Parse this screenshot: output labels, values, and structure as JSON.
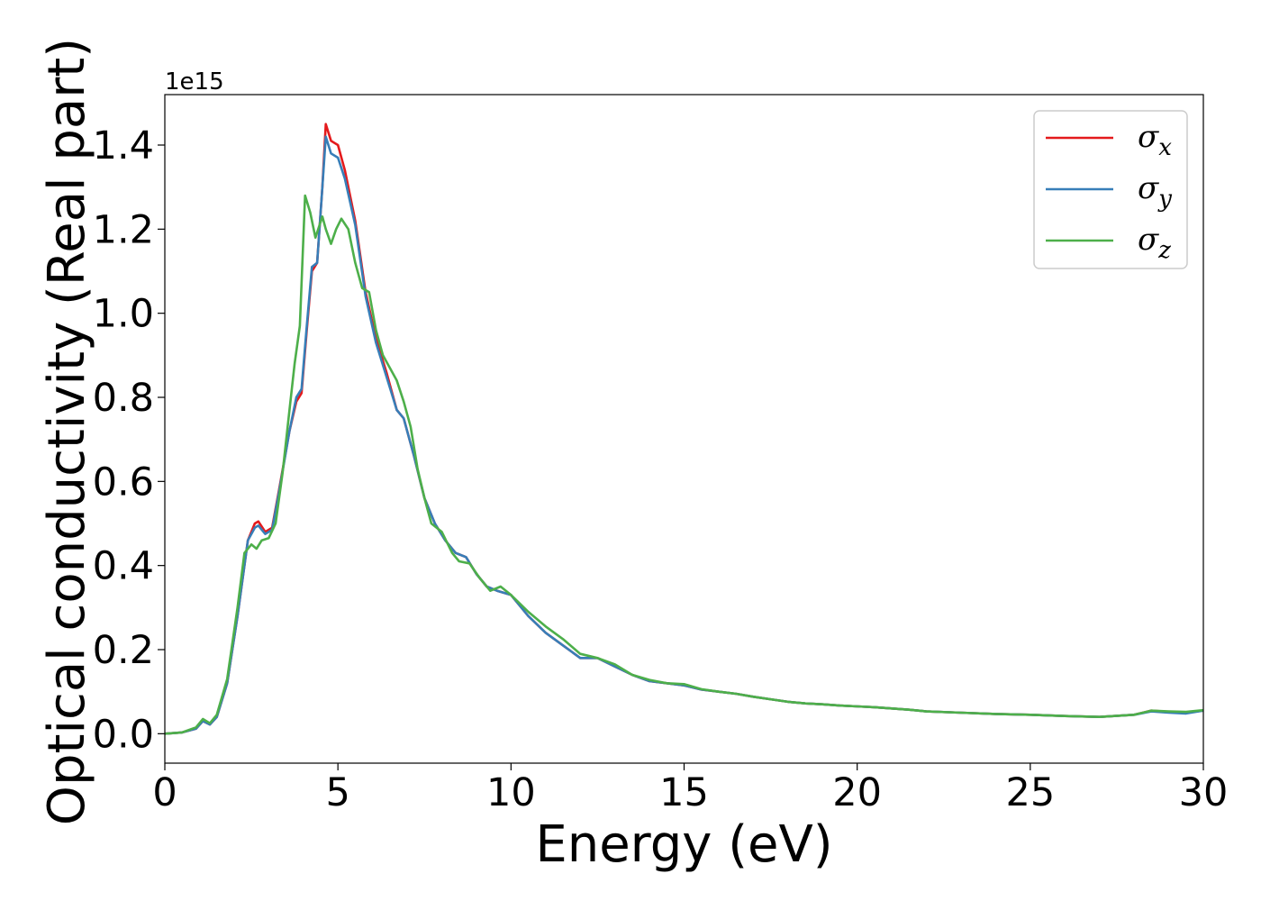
{
  "chart_data": {
    "type": "line",
    "xlabel": "Energy (eV)",
    "ylabel": "Optical conductivity (Real part)",
    "y_offset_label": "1e15",
    "xlim": [
      0,
      30
    ],
    "ylim": [
      -0.07,
      1.52
    ],
    "x_ticks": [
      0,
      5,
      10,
      15,
      20,
      25,
      30
    ],
    "x_tick_labels": [
      "0",
      "5",
      "10",
      "15",
      "20",
      "25",
      "30"
    ],
    "y_ticks": [
      0.0,
      0.2,
      0.4,
      0.6,
      0.8,
      1.0,
      1.2,
      1.4
    ],
    "y_tick_labels": [
      "0.0",
      "0.2",
      "0.4",
      "0.6",
      "0.8",
      "1.0",
      "1.2",
      "1.4"
    ],
    "grid": false,
    "legend_position": "top-right",
    "series": [
      {
        "name": "σx",
        "name_base": "σ",
        "name_sub": "x",
        "color": "#e41a1c",
        "points": [
          [
            0,
            0
          ],
          [
            0.5,
            0.003
          ],
          [
            0.9,
            0.012
          ],
          [
            1.1,
            0.03
          ],
          [
            1.3,
            0.022
          ],
          [
            1.5,
            0.04
          ],
          [
            1.8,
            0.12
          ],
          [
            2.1,
            0.28
          ],
          [
            2.4,
            0.46
          ],
          [
            2.6,
            0.5
          ],
          [
            2.7,
            0.505
          ],
          [
            2.9,
            0.48
          ],
          [
            3.1,
            0.49
          ],
          [
            3.3,
            0.58
          ],
          [
            3.6,
            0.72
          ],
          [
            3.8,
            0.79
          ],
          [
            3.95,
            0.81
          ],
          [
            4.1,
            0.96
          ],
          [
            4.25,
            1.1
          ],
          [
            4.4,
            1.12
          ],
          [
            4.55,
            1.3
          ],
          [
            4.65,
            1.45
          ],
          [
            4.8,
            1.41
          ],
          [
            5.0,
            1.4
          ],
          [
            5.2,
            1.34
          ],
          [
            5.5,
            1.22
          ],
          [
            5.8,
            1.05
          ],
          [
            6.1,
            0.94
          ],
          [
            6.4,
            0.86
          ],
          [
            6.7,
            0.77
          ],
          [
            6.9,
            0.75
          ],
          [
            7.2,
            0.66
          ],
          [
            7.5,
            0.56
          ],
          [
            7.8,
            0.5
          ],
          [
            8.1,
            0.46
          ],
          [
            8.4,
            0.43
          ],
          [
            8.7,
            0.42
          ],
          [
            9.0,
            0.38
          ],
          [
            9.3,
            0.35
          ],
          [
            9.6,
            0.34
          ],
          [
            10.0,
            0.33
          ],
          [
            10.5,
            0.28
          ],
          [
            11.0,
            0.24
          ],
          [
            11.5,
            0.21
          ],
          [
            12.0,
            0.18
          ],
          [
            12.5,
            0.18
          ],
          [
            13.0,
            0.16
          ],
          [
            13.5,
            0.14
          ],
          [
            14.0,
            0.125
          ],
          [
            14.5,
            0.12
          ],
          [
            15.0,
            0.115
          ],
          [
            15.5,
            0.105
          ],
          [
            16.0,
            0.1
          ],
          [
            16.5,
            0.095
          ],
          [
            17.0,
            0.088
          ],
          [
            17.5,
            0.082
          ],
          [
            18.0,
            0.076
          ],
          [
            18.5,
            0.072
          ],
          [
            19.0,
            0.07
          ],
          [
            19.5,
            0.067
          ],
          [
            20.0,
            0.065
          ],
          [
            20.5,
            0.063
          ],
          [
            21.0,
            0.06
          ],
          [
            21.5,
            0.057
          ],
          [
            22.0,
            0.053
          ],
          [
            23.0,
            0.05
          ],
          [
            24.0,
            0.047
          ],
          [
            25.0,
            0.045
          ],
          [
            26.0,
            0.042
          ],
          [
            27.0,
            0.04
          ],
          [
            28.0,
            0.045
          ],
          [
            28.5,
            0.055
          ],
          [
            29.0,
            0.052
          ],
          [
            29.5,
            0.05
          ],
          [
            30.0,
            0.055
          ]
        ]
      },
      {
        "name": "σy",
        "name_base": "σ",
        "name_sub": "y",
        "color": "#377eb8",
        "points": [
          [
            0,
            0
          ],
          [
            0.5,
            0.003
          ],
          [
            0.9,
            0.012
          ],
          [
            1.1,
            0.03
          ],
          [
            1.3,
            0.022
          ],
          [
            1.5,
            0.04
          ],
          [
            1.8,
            0.12
          ],
          [
            2.1,
            0.28
          ],
          [
            2.4,
            0.46
          ],
          [
            2.6,
            0.49
          ],
          [
            2.7,
            0.495
          ],
          [
            2.9,
            0.475
          ],
          [
            3.1,
            0.485
          ],
          [
            3.3,
            0.575
          ],
          [
            3.6,
            0.72
          ],
          [
            3.8,
            0.8
          ],
          [
            3.95,
            0.82
          ],
          [
            4.1,
            0.97
          ],
          [
            4.25,
            1.11
          ],
          [
            4.4,
            1.12
          ],
          [
            4.55,
            1.3
          ],
          [
            4.65,
            1.42
          ],
          [
            4.8,
            1.38
          ],
          [
            5.0,
            1.37
          ],
          [
            5.2,
            1.32
          ],
          [
            5.5,
            1.21
          ],
          [
            5.8,
            1.04
          ],
          [
            6.1,
            0.93
          ],
          [
            6.4,
            0.85
          ],
          [
            6.7,
            0.77
          ],
          [
            6.9,
            0.75
          ],
          [
            7.2,
            0.66
          ],
          [
            7.5,
            0.56
          ],
          [
            7.8,
            0.5
          ],
          [
            8.1,
            0.46
          ],
          [
            8.4,
            0.43
          ],
          [
            8.7,
            0.42
          ],
          [
            9.0,
            0.38
          ],
          [
            9.3,
            0.35
          ],
          [
            9.6,
            0.34
          ],
          [
            10.0,
            0.33
          ],
          [
            10.5,
            0.28
          ],
          [
            11.0,
            0.24
          ],
          [
            11.5,
            0.21
          ],
          [
            12.0,
            0.18
          ],
          [
            12.5,
            0.18
          ],
          [
            13.0,
            0.16
          ],
          [
            13.5,
            0.14
          ],
          [
            14.0,
            0.125
          ],
          [
            14.5,
            0.12
          ],
          [
            15.0,
            0.115
          ],
          [
            15.5,
            0.105
          ],
          [
            16.0,
            0.1
          ],
          [
            16.5,
            0.095
          ],
          [
            17.0,
            0.088
          ],
          [
            17.5,
            0.082
          ],
          [
            18.0,
            0.076
          ],
          [
            18.5,
            0.072
          ],
          [
            19.0,
            0.07
          ],
          [
            19.5,
            0.067
          ],
          [
            20.0,
            0.065
          ],
          [
            20.5,
            0.063
          ],
          [
            21.0,
            0.06
          ],
          [
            21.5,
            0.057
          ],
          [
            22.0,
            0.053
          ],
          [
            23.0,
            0.05
          ],
          [
            24.0,
            0.047
          ],
          [
            25.0,
            0.045
          ],
          [
            26.0,
            0.042
          ],
          [
            27.0,
            0.04
          ],
          [
            28.0,
            0.045
          ],
          [
            28.5,
            0.053
          ],
          [
            29.0,
            0.05
          ],
          [
            29.5,
            0.048
          ],
          [
            30.0,
            0.055
          ]
        ]
      },
      {
        "name": "σz",
        "name_base": "σ",
        "name_sub": "z",
        "color": "#4daf4a",
        "points": [
          [
            0,
            0
          ],
          [
            0.5,
            0.003
          ],
          [
            0.9,
            0.015
          ],
          [
            1.1,
            0.035
          ],
          [
            1.3,
            0.025
          ],
          [
            1.5,
            0.045
          ],
          [
            1.8,
            0.13
          ],
          [
            2.1,
            0.3
          ],
          [
            2.3,
            0.43
          ],
          [
            2.5,
            0.45
          ],
          [
            2.65,
            0.44
          ],
          [
            2.8,
            0.46
          ],
          [
            3.0,
            0.465
          ],
          [
            3.2,
            0.5
          ],
          [
            3.4,
            0.62
          ],
          [
            3.6,
            0.77
          ],
          [
            3.75,
            0.88
          ],
          [
            3.9,
            0.97
          ],
          [
            4.05,
            1.28
          ],
          [
            4.2,
            1.24
          ],
          [
            4.35,
            1.18
          ],
          [
            4.55,
            1.23
          ],
          [
            4.65,
            1.2
          ],
          [
            4.8,
            1.165
          ],
          [
            4.95,
            1.2
          ],
          [
            5.1,
            1.225
          ],
          [
            5.3,
            1.2
          ],
          [
            5.5,
            1.12
          ],
          [
            5.7,
            1.06
          ],
          [
            5.9,
            1.05
          ],
          [
            6.1,
            0.96
          ],
          [
            6.3,
            0.9
          ],
          [
            6.5,
            0.87
          ],
          [
            6.7,
            0.84
          ],
          [
            6.9,
            0.79
          ],
          [
            7.1,
            0.73
          ],
          [
            7.3,
            0.63
          ],
          [
            7.5,
            0.56
          ],
          [
            7.7,
            0.5
          ],
          [
            8.0,
            0.48
          ],
          [
            8.3,
            0.43
          ],
          [
            8.5,
            0.41
          ],
          [
            8.8,
            0.405
          ],
          [
            9.1,
            0.37
          ],
          [
            9.4,
            0.34
          ],
          [
            9.7,
            0.35
          ],
          [
            10.0,
            0.33
          ],
          [
            10.5,
            0.29
          ],
          [
            11.0,
            0.255
          ],
          [
            11.5,
            0.225
          ],
          [
            12.0,
            0.19
          ],
          [
            12.5,
            0.18
          ],
          [
            13.0,
            0.165
          ],
          [
            13.5,
            0.14
          ],
          [
            14.0,
            0.128
          ],
          [
            14.5,
            0.12
          ],
          [
            15.0,
            0.118
          ],
          [
            15.5,
            0.106
          ],
          [
            16.0,
            0.1
          ],
          [
            16.5,
            0.095
          ],
          [
            17.0,
            0.088
          ],
          [
            17.5,
            0.082
          ],
          [
            18.0,
            0.076
          ],
          [
            18.5,
            0.072
          ],
          [
            19.0,
            0.07
          ],
          [
            19.5,
            0.067
          ],
          [
            20.0,
            0.065
          ],
          [
            20.5,
            0.063
          ],
          [
            21.0,
            0.06
          ],
          [
            21.5,
            0.057
          ],
          [
            22.0,
            0.053
          ],
          [
            23.0,
            0.05
          ],
          [
            24.0,
            0.047
          ],
          [
            25.0,
            0.045
          ],
          [
            26.0,
            0.042
          ],
          [
            27.0,
            0.04
          ],
          [
            28.0,
            0.045
          ],
          [
            28.5,
            0.055
          ],
          [
            29.0,
            0.053
          ],
          [
            29.5,
            0.052
          ],
          [
            30.0,
            0.056
          ]
        ]
      }
    ]
  }
}
